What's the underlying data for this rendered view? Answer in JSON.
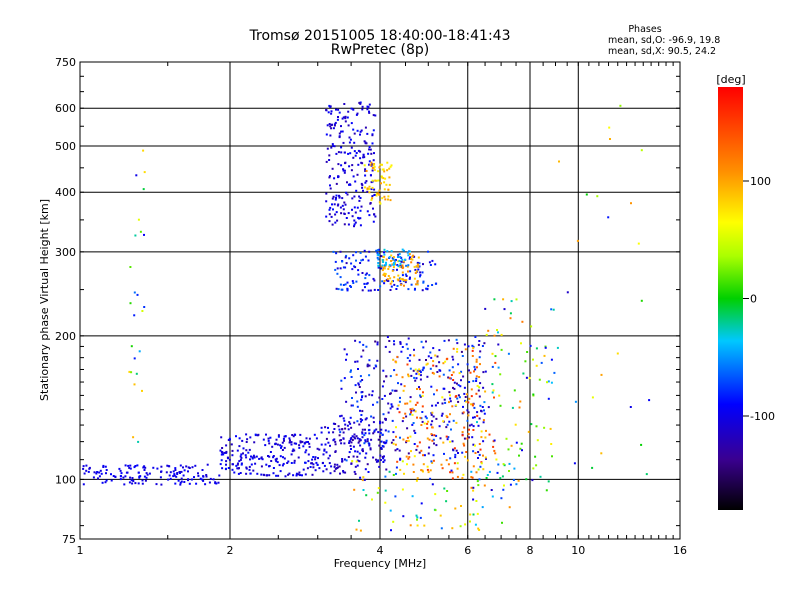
{
  "chart_data": {
    "type": "scatter",
    "title": "Tromsø 20151005 18:40:00-18:41:43",
    "subtitle": "RwPretec (8p)",
    "xlabel": "Frequency [MHz]",
    "ylabel": "Stationary phase Virtual Height [km]",
    "x_scale": "log",
    "y_scale": "log",
    "xlim": [
      1,
      16
    ],
    "ylim": [
      75,
      750
    ],
    "x_ticks": [
      1,
      2,
      4,
      6,
      8,
      10,
      16
    ],
    "x_tick_labels": [
      "1",
      "2",
      "4",
      "6",
      "8",
      "10",
      "16"
    ],
    "y_ticks": [
      75,
      100,
      200,
      300,
      400,
      500,
      600,
      750
    ],
    "y_tick_labels": [
      "75",
      "100",
      "200",
      "300",
      "400",
      "500",
      "600",
      "750"
    ],
    "grid": true,
    "annotation": {
      "heading": "Phases",
      "line1": "mean, sd,O: -96.9, 19.8",
      "line2": "mean, sd,X:  90.5, 24.2"
    },
    "colorbar": {
      "label": "[deg]",
      "range": [
        -180,
        180
      ],
      "ticks": [
        100,
        0,
        -100
      ],
      "tick_labels": [
        "100",
        "0",
        "-100"
      ],
      "colormap": "rainbow"
    },
    "clusters": [
      {
        "x": [
          1.0,
          1.9
        ],
        "y": [
          98,
          108
        ],
        "phase": [
          -110,
          -90
        ],
        "n": 150
      },
      {
        "x": [
          1.9,
          3.0
        ],
        "y": [
          102,
          125
        ],
        "phase": [
          -120,
          -85
        ],
        "n": 220
      },
      {
        "x": [
          3.0,
          4.1
        ],
        "y": [
          103,
          135
        ],
        "phase": [
          -130,
          -90
        ],
        "n": 150
      },
      {
        "x": [
          3.1,
          3.9
        ],
        "y": [
          340,
          620
        ],
        "phase": [
          -125,
          -85
        ],
        "n": 240
      },
      {
        "x": [
          3.7,
          4.2
        ],
        "y": [
          380,
          470
        ],
        "phase": [
          60,
          110
        ],
        "n": 60
      },
      {
        "x": [
          3.2,
          5.2
        ],
        "y": [
          250,
          305
        ],
        "phase": [
          -120,
          -60
        ],
        "n": 150
      },
      {
        "x": [
          4.0,
          4.8
        ],
        "y": [
          255,
          300
        ],
        "phase": [
          80,
          115
        ],
        "n": 70
      },
      {
        "x": [
          3.9,
          4.6
        ],
        "y": [
          280,
          305
        ],
        "phase": [
          -60,
          -30
        ],
        "n": 40
      },
      {
        "x": [
          3.3,
          6.5
        ],
        "y": [
          110,
          200
        ],
        "phase": [
          -140,
          -60
        ],
        "n": 360
      },
      {
        "x": [
          4.2,
          6.8
        ],
        "y": [
          100,
          190
        ],
        "phase": [
          60,
          160
        ],
        "n": 190
      },
      {
        "x": [
          6.2,
          9.0
        ],
        "y": [
          95,
          240
        ],
        "phase": [
          -120,
          120
        ],
        "n": 110
      },
      {
        "x": [
          3.5,
          7.5
        ],
        "y": [
          78,
          110
        ],
        "phase": [
          -110,
          120
        ],
        "n": 90
      },
      {
        "x": [
          1.25,
          1.35
        ],
        "y": [
          120,
          570
        ],
        "phase": [
          -110,
          110
        ],
        "n": 25
      },
      {
        "x": [
          9.0,
          14.0
        ],
        "y": [
          95,
          680
        ],
        "phase": [
          -120,
          120
        ],
        "n": 25
      }
    ]
  }
}
